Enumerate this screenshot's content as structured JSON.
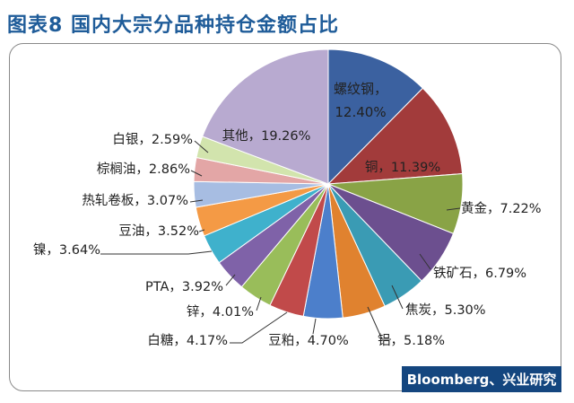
{
  "page": {
    "title": "图表8  国内大宗分品种持仓金额占比",
    "source": "Bloomberg、兴业研究"
  },
  "colors": {
    "title": "#1f5c99",
    "source_bg": "#14467f",
    "label_text": "#222222",
    "leader_line": "#333333"
  },
  "chart_data": {
    "type": "pie",
    "unit": "%",
    "start": "12 o'clock",
    "direction": "clockwise",
    "slices": [
      {
        "label": "螺纹钢",
        "value": 12.4,
        "value_text": "12.40%",
        "color": "#3b61a0"
      },
      {
        "label": "铜",
        "value": 11.39,
        "value_text": "11.39%",
        "color": "#a23b3b"
      },
      {
        "label": "黄金",
        "value": 7.22,
        "value_text": "7.22%",
        "color": "#89a346"
      },
      {
        "label": "铁矿石",
        "value": 6.79,
        "value_text": "6.79%",
        "color": "#6c4f8f"
      },
      {
        "label": "焦炭",
        "value": 5.3,
        "value_text": "5.30%",
        "color": "#3a9bb4"
      },
      {
        "label": "铝",
        "value": 5.18,
        "value_text": "5.18%",
        "color": "#e0822f"
      },
      {
        "label": "豆粕",
        "value": 4.7,
        "value_text": "4.70%",
        "color": "#4c7fcb"
      },
      {
        "label": "白糖",
        "value": 4.17,
        "value_text": "4.17%",
        "color": "#c14a4a"
      },
      {
        "label": "锌",
        "value": 4.01,
        "value_text": "4.01%",
        "color": "#99bd5a"
      },
      {
        "label": "PTA",
        "value": 3.92,
        "value_text": "3.92%",
        "color": "#7f62a8"
      },
      {
        "label": "镍",
        "value": 3.64,
        "value_text": "3.64%",
        "color": "#3fb1cc"
      },
      {
        "label": "豆油",
        "value": 3.52,
        "value_text": "3.52%",
        "color": "#f49a45"
      },
      {
        "label": "热轧卷板",
        "value": 3.07,
        "value_text": "3.07%",
        "color": "#a7bde2"
      },
      {
        "label": "棕榈油",
        "value": 2.86,
        "value_text": "2.86%",
        "color": "#e3a6a6"
      },
      {
        "label": "白银",
        "value": 2.59,
        "value_text": "2.59%",
        "color": "#d2e4ad"
      },
      {
        "label": "其他",
        "value": 19.26,
        "value_text": "19.26%",
        "color": "#b8aad0"
      }
    ]
  }
}
